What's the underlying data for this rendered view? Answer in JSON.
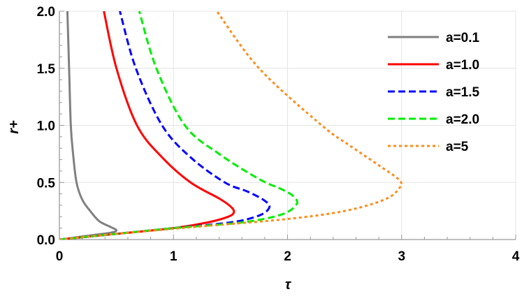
{
  "chart_data": {
    "type": "line",
    "title": "",
    "xlabel": "τ",
    "ylabel": "r+",
    "xlim": [
      0,
      4
    ],
    "ylim": [
      0,
      2
    ],
    "x_ticks": [
      "0",
      "1",
      "2",
      "3",
      "4"
    ],
    "y_ticks": [
      "0.0",
      "0.5",
      "1.0",
      "1.5",
      "2.0"
    ],
    "grid": true,
    "legend_position": "top-right",
    "series": [
      {
        "name": "a=0.1",
        "color": "#808080",
        "style": "solid",
        "points": [
          [
            0.0,
            0.0
          ],
          [
            0.15,
            0.02
          ],
          [
            0.3,
            0.04
          ],
          [
            0.45,
            0.06
          ],
          [
            0.5,
            0.08
          ],
          [
            0.45,
            0.11
          ],
          [
            0.35,
            0.16
          ],
          [
            0.27,
            0.25
          ],
          [
            0.2,
            0.35
          ],
          [
            0.15,
            0.5
          ],
          [
            0.12,
            0.75
          ],
          [
            0.1,
            1.0
          ],
          [
            0.085,
            1.5
          ],
          [
            0.07,
            2.0
          ]
        ]
      },
      {
        "name": "a=1.0",
        "color": "#ff0000",
        "style": "solid",
        "points": [
          [
            0.0,
            0.0
          ],
          [
            0.5,
            0.05
          ],
          [
            1.0,
            0.1
          ],
          [
            1.3,
            0.15
          ],
          [
            1.48,
            0.2
          ],
          [
            1.53,
            0.24
          ],
          [
            1.5,
            0.29
          ],
          [
            1.4,
            0.36
          ],
          [
            1.15,
            0.5
          ],
          [
            0.9,
            0.72
          ],
          [
            0.68,
            1.0
          ],
          [
            0.5,
            1.5
          ],
          [
            0.39,
            2.0
          ]
        ]
      },
      {
        "name": "a=1.5",
        "color": "#0000ff",
        "style": "dashed",
        "points": [
          [
            0.0,
            0.0
          ],
          [
            0.5,
            0.05
          ],
          [
            1.0,
            0.1
          ],
          [
            1.5,
            0.15
          ],
          [
            1.75,
            0.21
          ],
          [
            1.84,
            0.28
          ],
          [
            1.8,
            0.34
          ],
          [
            1.65,
            0.42
          ],
          [
            1.45,
            0.5
          ],
          [
            1.15,
            0.72
          ],
          [
            0.9,
            1.0
          ],
          [
            0.67,
            1.5
          ],
          [
            0.53,
            2.0
          ]
        ]
      },
      {
        "name": "a=2.0",
        "color": "#00ee00",
        "style": "dashed",
        "points": [
          [
            0.0,
            0.0
          ],
          [
            0.5,
            0.05
          ],
          [
            1.0,
            0.1
          ],
          [
            1.6,
            0.15
          ],
          [
            1.95,
            0.22
          ],
          [
            2.08,
            0.31
          ],
          [
            2.05,
            0.38
          ],
          [
            1.95,
            0.44
          ],
          [
            1.75,
            0.53
          ],
          [
            1.4,
            0.75
          ],
          [
            1.1,
            1.0
          ],
          [
            0.85,
            1.5
          ],
          [
            0.7,
            2.0
          ]
        ]
      },
      {
        "name": "a=5",
        "color": "#ff8c1a",
        "style": "dotted",
        "points": [
          [
            0.0,
            0.0
          ],
          [
            0.5,
            0.05
          ],
          [
            1.3,
            0.12
          ],
          [
            2.0,
            0.18
          ],
          [
            2.5,
            0.25
          ],
          [
            2.85,
            0.35
          ],
          [
            2.98,
            0.45
          ],
          [
            2.98,
            0.52
          ],
          [
            2.8,
            0.65
          ],
          [
            2.55,
            0.82
          ],
          [
            2.3,
            1.0
          ],
          [
            1.75,
            1.5
          ],
          [
            1.38,
            2.0
          ]
        ]
      }
    ]
  }
}
